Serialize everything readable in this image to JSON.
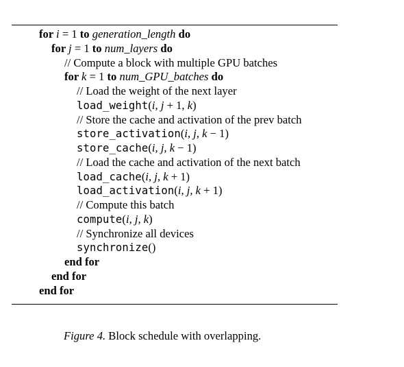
{
  "algorithm": {
    "lines": [
      {
        "indent": 0,
        "parts": [
          {
            "t": "kw",
            "v": "for "
          },
          {
            "t": "mathv",
            "v": "i"
          },
          {
            "t": "txt",
            "v": " = 1 "
          },
          {
            "t": "kw",
            "v": "to "
          },
          {
            "t": "mathv",
            "v": "generation_length"
          },
          {
            "t": "kw",
            "v": " do"
          }
        ]
      },
      {
        "indent": 1,
        "parts": [
          {
            "t": "kw",
            "v": "for "
          },
          {
            "t": "mathv",
            "v": "j"
          },
          {
            "t": "txt",
            "v": " = 1 "
          },
          {
            "t": "kw",
            "v": "to "
          },
          {
            "t": "mathv",
            "v": "num_layers"
          },
          {
            "t": "kw",
            "v": " do"
          }
        ]
      },
      {
        "indent": 2,
        "parts": [
          {
            "t": "txt",
            "v": "// Compute a block with multiple GPU batches"
          }
        ]
      },
      {
        "indent": 2,
        "parts": [
          {
            "t": "kw",
            "v": "for "
          },
          {
            "t": "mathv",
            "v": "k"
          },
          {
            "t": "txt",
            "v": " = 1 "
          },
          {
            "t": "kw",
            "v": "to "
          },
          {
            "t": "mathv",
            "v": "num_GPU_batches"
          },
          {
            "t": "kw",
            "v": " do"
          }
        ]
      },
      {
        "indent": 3,
        "parts": [
          {
            "t": "txt",
            "v": "// Load the weight of the next layer"
          }
        ]
      },
      {
        "indent": 3,
        "parts": [
          {
            "t": "tt",
            "v": "load_weight"
          },
          {
            "t": "txt",
            "v": "("
          },
          {
            "t": "mathv",
            "v": "i, j"
          },
          {
            "t": "txt",
            "v": " + 1, "
          },
          {
            "t": "mathv",
            "v": "k"
          },
          {
            "t": "txt",
            "v": ")"
          }
        ]
      },
      {
        "indent": 3,
        "parts": [
          {
            "t": "txt",
            "v": "// Store the cache and activation of the prev batch"
          }
        ]
      },
      {
        "indent": 3,
        "parts": [
          {
            "t": "tt",
            "v": "store_activation"
          },
          {
            "t": "txt",
            "v": "("
          },
          {
            "t": "mathv",
            "v": "i, j, k"
          },
          {
            "t": "txt",
            "v": " − 1)"
          }
        ]
      },
      {
        "indent": 3,
        "parts": [
          {
            "t": "tt",
            "v": "store_cache"
          },
          {
            "t": "txt",
            "v": "("
          },
          {
            "t": "mathv",
            "v": "i, j, k"
          },
          {
            "t": "txt",
            "v": " − 1)"
          }
        ]
      },
      {
        "indent": 3,
        "parts": [
          {
            "t": "txt",
            "v": "// Load the cache and activation of the next batch"
          }
        ]
      },
      {
        "indent": 3,
        "parts": [
          {
            "t": "tt",
            "v": "load_cache"
          },
          {
            "t": "txt",
            "v": "("
          },
          {
            "t": "mathv",
            "v": "i, j, k"
          },
          {
            "t": "txt",
            "v": " + 1)"
          }
        ]
      },
      {
        "indent": 3,
        "parts": [
          {
            "t": "tt",
            "v": "load_activation"
          },
          {
            "t": "txt",
            "v": "("
          },
          {
            "t": "mathv",
            "v": "i, j, k"
          },
          {
            "t": "txt",
            "v": " + 1)"
          }
        ]
      },
      {
        "indent": 3,
        "parts": [
          {
            "t": "txt",
            "v": "// Compute this batch"
          }
        ]
      },
      {
        "indent": 3,
        "parts": [
          {
            "t": "tt",
            "v": "compute"
          },
          {
            "t": "txt",
            "v": "("
          },
          {
            "t": "mathv",
            "v": "i, j, k"
          },
          {
            "t": "txt",
            "v": ")"
          }
        ]
      },
      {
        "indent": 3,
        "parts": [
          {
            "t": "txt",
            "v": "// Synchronize all devices"
          }
        ]
      },
      {
        "indent": 3,
        "parts": [
          {
            "t": "tt",
            "v": "synchronize"
          },
          {
            "t": "txt",
            "v": "()"
          }
        ]
      },
      {
        "indent": 2,
        "parts": [
          {
            "t": "kw",
            "v": "end for"
          }
        ]
      },
      {
        "indent": 1,
        "parts": [
          {
            "t": "kw",
            "v": "end for"
          }
        ]
      },
      {
        "indent": 0,
        "parts": [
          {
            "t": "kw",
            "v": "end for"
          }
        ]
      }
    ]
  },
  "caption": {
    "label": "Figure 4.",
    "text": " Block schedule with overlapping."
  }
}
